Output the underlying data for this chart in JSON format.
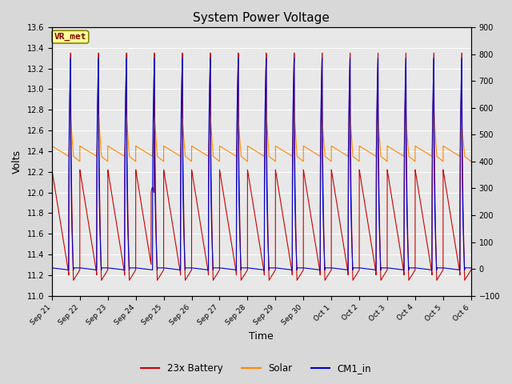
{
  "title": "System Power Voltage",
  "xlabel": "Time",
  "ylabel_left": "Volts",
  "ylim_left": [
    11.0,
    13.6
  ],
  "ylim_right": [
    -100,
    900
  ],
  "yticks_left": [
    11.0,
    11.2,
    11.4,
    11.6,
    11.8,
    12.0,
    12.2,
    12.4,
    12.6,
    12.8,
    13.0,
    13.2,
    13.4,
    13.6
  ],
  "yticks_right": [
    -100,
    0,
    100,
    200,
    300,
    400,
    500,
    600,
    700,
    800,
    900
  ],
  "background_color": "#e8e8e8",
  "fig_bg_color": "#d8d8d8",
  "grid_color": "#ffffff",
  "annotation_text": "VR_met",
  "annotation_box_color": "#ffff99",
  "annotation_text_color": "#800000",
  "legend_entries": [
    "23x Battery",
    "Solar",
    "CM1_in"
  ],
  "line_colors": [
    "#cc0000",
    "#ff8800",
    "#0000cc"
  ],
  "tick_labels": [
    "Sep 21",
    "Sep 22",
    "Sep 23",
    "Sep 24",
    "Sep 25",
    "Sep 26",
    "Sep 27",
    "Sep 28",
    "Sep 29",
    "Sep 30",
    "Oct 1",
    "Oct 2",
    "Oct 3",
    "Oct 4",
    "Oct 5",
    "Oct 6"
  ],
  "n_days": 15
}
